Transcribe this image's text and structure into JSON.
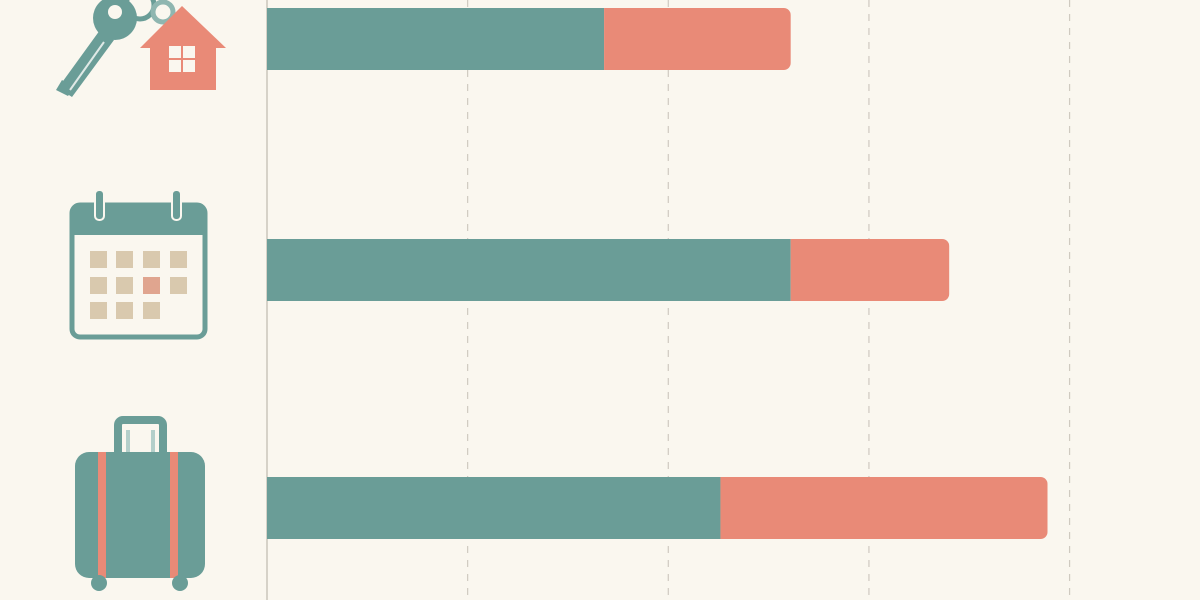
{
  "chart_data": {
    "type": "stacked-bar-horizontal",
    "categories": [
      null,
      null,
      null
    ],
    "series": [
      {
        "color": "#6a9d97",
        "values": [
          168,
          261,
          226
        ]
      },
      {
        "color": "#e98a77",
        "values": [
          93,
          79,
          163
        ]
      }
    ],
    "xlim": [
      0,
      465
    ],
    "xticks": [
      0,
      100,
      200,
      300,
      400
    ],
    "grid": true
  }
}
